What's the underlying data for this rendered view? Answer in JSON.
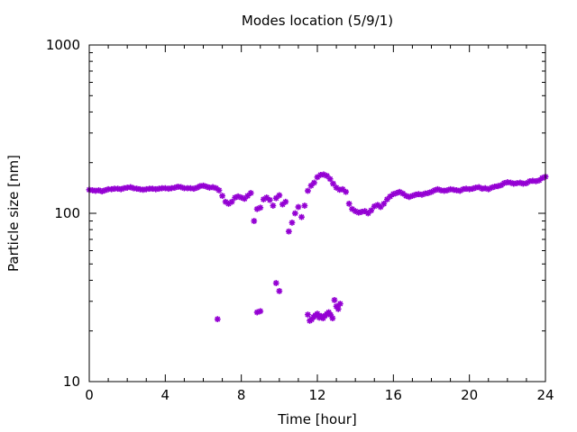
{
  "chart_data": {
    "type": "scatter",
    "title": "Modes location (5/9/1)",
    "xlabel": "Time [hour]",
    "ylabel": "Particle size [nm]",
    "xlim": [
      0,
      24
    ],
    "ylim": [
      10,
      1000
    ],
    "yscale": "log",
    "grid": false,
    "legend": "none",
    "marker_color": "#9400d3",
    "x_ticks": [
      0,
      4,
      8,
      12,
      16,
      20,
      24
    ],
    "y_ticks": [
      10,
      100,
      1000
    ],
    "x_tick_labels": [
      "0",
      "4",
      "8",
      "12",
      "16",
      "20",
      "24"
    ],
    "y_tick_labels": [
      "10",
      "100",
      "1000"
    ],
    "series": [
      {
        "points": [
          [
            0.0,
            138
          ],
          [
            0.17,
            137
          ],
          [
            0.33,
            136
          ],
          [
            0.5,
            137
          ],
          [
            0.67,
            135
          ],
          [
            0.83,
            137
          ],
          [
            1.0,
            139
          ],
          [
            1.17,
            139
          ],
          [
            1.33,
            140
          ],
          [
            1.5,
            140
          ],
          [
            1.67,
            139
          ],
          [
            1.83,
            141
          ],
          [
            2.0,
            142
          ],
          [
            2.17,
            143
          ],
          [
            2.33,
            141
          ],
          [
            2.5,
            140
          ],
          [
            2.67,
            139
          ],
          [
            2.83,
            138
          ],
          [
            3.0,
            139
          ],
          [
            3.17,
            140
          ],
          [
            3.33,
            140
          ],
          [
            3.5,
            139
          ],
          [
            3.67,
            140
          ],
          [
            3.83,
            141
          ],
          [
            4.0,
            141
          ],
          [
            4.17,
            140
          ],
          [
            4.33,
            141
          ],
          [
            4.5,
            142
          ],
          [
            4.67,
            144
          ],
          [
            4.83,
            143
          ],
          [
            5.0,
            141
          ],
          [
            5.17,
            141
          ],
          [
            5.33,
            141
          ],
          [
            5.5,
            140
          ],
          [
            5.67,
            142
          ],
          [
            5.83,
            145
          ],
          [
            6.0,
            146
          ],
          [
            6.17,
            144
          ],
          [
            6.33,
            142
          ],
          [
            6.5,
            143
          ],
          [
            6.67,
            141
          ],
          [
            6.83,
            137
          ],
          [
            7.0,
            127
          ],
          [
            7.17,
            117
          ],
          [
            7.33,
            114
          ],
          [
            7.5,
            117
          ],
          [
            7.67,
            124
          ],
          [
            7.83,
            126
          ],
          [
            8.0,
            124
          ],
          [
            8.17,
            122
          ],
          [
            8.33,
            127
          ],
          [
            8.5,
            132
          ],
          [
            8.67,
            90
          ],
          [
            8.83,
            106
          ],
          [
            9.0,
            108
          ],
          [
            9.17,
            121
          ],
          [
            9.33,
            124
          ],
          [
            9.5,
            120
          ],
          [
            9.67,
            111
          ],
          [
            9.83,
            123
          ],
          [
            10.0,
            128
          ],
          [
            10.17,
            113
          ],
          [
            10.33,
            117
          ],
          [
            10.5,
            78
          ],
          [
            10.67,
            88
          ],
          [
            10.83,
            100
          ],
          [
            11.0,
            109
          ],
          [
            11.17,
            95
          ],
          [
            11.33,
            111
          ],
          [
            11.5,
            136
          ],
          [
            11.67,
            146
          ],
          [
            11.83,
            152
          ],
          [
            12.0,
            164
          ],
          [
            12.17,
            169
          ],
          [
            12.33,
            170
          ],
          [
            12.5,
            167
          ],
          [
            12.67,
            160
          ],
          [
            12.83,
            150
          ],
          [
            13.0,
            142
          ],
          [
            13.17,
            138
          ],
          [
            13.33,
            139
          ],
          [
            13.5,
            134
          ],
          [
            13.67,
            114
          ],
          [
            13.83,
            106
          ],
          [
            14.0,
            103
          ],
          [
            14.17,
            101
          ],
          [
            14.33,
            102
          ],
          [
            14.5,
            103
          ],
          [
            14.67,
            100
          ],
          [
            14.83,
            104
          ],
          [
            15.0,
            110
          ],
          [
            15.17,
            112
          ],
          [
            15.33,
            109
          ],
          [
            15.5,
            114
          ],
          [
            15.67,
            121
          ],
          [
            15.83,
            126
          ],
          [
            16.0,
            130
          ],
          [
            16.17,
            132
          ],
          [
            16.33,
            134
          ],
          [
            16.5,
            131
          ],
          [
            16.67,
            127
          ],
          [
            16.83,
            125
          ],
          [
            17.0,
            127
          ],
          [
            17.17,
            129
          ],
          [
            17.33,
            130
          ],
          [
            17.5,
            129
          ],
          [
            17.67,
            131
          ],
          [
            17.83,
            132
          ],
          [
            18.0,
            134
          ],
          [
            18.17,
            137
          ],
          [
            18.33,
            139
          ],
          [
            18.5,
            137
          ],
          [
            18.67,
            136
          ],
          [
            18.83,
            137
          ],
          [
            19.0,
            139
          ],
          [
            19.17,
            138
          ],
          [
            19.33,
            137
          ],
          [
            19.5,
            136
          ],
          [
            19.67,
            139
          ],
          [
            19.83,
            140
          ],
          [
            20.0,
            139
          ],
          [
            20.17,
            140
          ],
          [
            20.33,
            142
          ],
          [
            20.5,
            143
          ],
          [
            20.67,
            140
          ],
          [
            20.83,
            141
          ],
          [
            21.0,
            139
          ],
          [
            21.17,
            142
          ],
          [
            21.33,
            144
          ],
          [
            21.5,
            145
          ],
          [
            21.67,
            147
          ],
          [
            21.83,
            151
          ],
          [
            22.0,
            153
          ],
          [
            22.17,
            152
          ],
          [
            22.33,
            150
          ],
          [
            22.5,
            151
          ],
          [
            22.67,
            152
          ],
          [
            22.83,
            150
          ],
          [
            23.0,
            151
          ],
          [
            23.17,
            155
          ],
          [
            23.33,
            156
          ],
          [
            23.5,
            155
          ],
          [
            23.67,
            157
          ],
          [
            23.83,
            162
          ],
          [
            24.0,
            165
          ]
        ]
      },
      {
        "points": [
          [
            6.75,
            23.5
          ],
          [
            8.83,
            25.8
          ],
          [
            9.0,
            26.2
          ],
          [
            9.83,
            38.5
          ],
          [
            10.0,
            34.5
          ],
          [
            11.5,
            25.0
          ],
          [
            11.6,
            23.0
          ],
          [
            11.7,
            23.4
          ],
          [
            11.8,
            24.2
          ],
          [
            11.9,
            24.8
          ],
          [
            12.0,
            25.3
          ],
          [
            12.1,
            24.0
          ],
          [
            12.2,
            24.5
          ],
          [
            12.3,
            23.8
          ],
          [
            12.4,
            24.6
          ],
          [
            12.5,
            25.2
          ],
          [
            12.6,
            25.8
          ],
          [
            12.7,
            24.9
          ],
          [
            12.8,
            23.8
          ],
          [
            12.9,
            30.5
          ],
          [
            13.0,
            28.0
          ],
          [
            13.1,
            27.0
          ],
          [
            13.2,
            29.0
          ]
        ]
      }
    ]
  }
}
